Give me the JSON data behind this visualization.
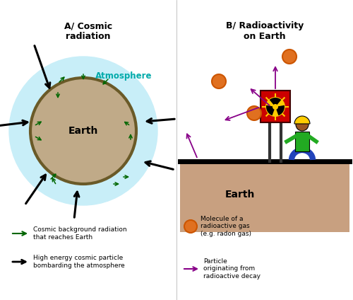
{
  "title_A": "A/ Cosmic\nradiation",
  "title_B": "B/ Radioactivity\non Earth",
  "atmosphere_text": "Atmosphere",
  "earth_text_A": "Earth",
  "earth_text_B": "Earth",
  "legend_green_text": "Cosmic background radiation\nthat reaches Earth",
  "legend_black_text": "High energy cosmic particle\nbombarding the atmosphere",
  "legend_orange_text": "Molecule of a\nradioactive gas\n(e.g. radon gas)",
  "legend_purple_text": "Particle\noriginating from\nradioactive decay",
  "bg_color": "#ffffff",
  "atmosphere_color": "#c8eef8",
  "earth_fill_A": "#c0aa88",
  "earth_edge_A": "#6a5a28",
  "earth_fill_B": "#c8a080",
  "green_arrow_color": "#006600",
  "black_arrow_color": "#000000",
  "purple_arrow_color": "#880088",
  "orange_color": "#e07020",
  "orange_edge_color": "#cc5500",
  "cyan_color": "#00aaaa",
  "red_color": "#cc0000",
  "yellow_color": "#ffcc00",
  "green_person_color": "#22aa22",
  "blue_color": "#2244bb"
}
